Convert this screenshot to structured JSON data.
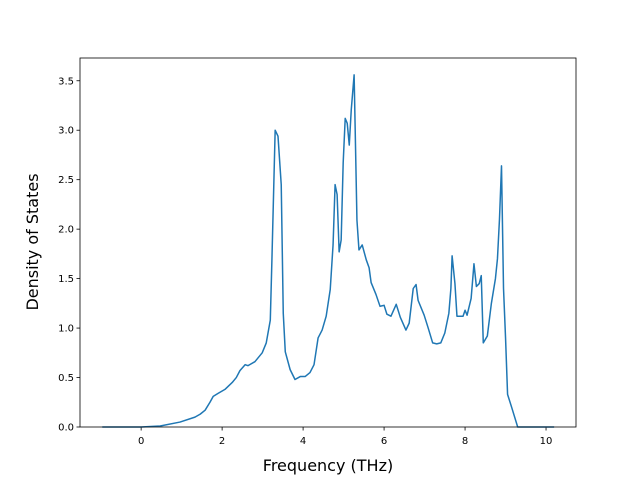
{
  "chart_data": {
    "type": "line",
    "x_label": "Frequency (THz)",
    "y_label": "Density of States",
    "xlim": [
      -1.51,
      10.74
    ],
    "ylim": [
      0,
      3.73
    ],
    "xticks": [
      0,
      2,
      4,
      6,
      8,
      10
    ],
    "yticks": [
      {
        "value": 0,
        "label": "0.0"
      },
      {
        "value": 0.5,
        "label": "0.5"
      },
      {
        "value": 1,
        "label": "1.0"
      },
      {
        "value": 1.5,
        "label": "1.5"
      },
      {
        "value": 2,
        "label": "2.0"
      },
      {
        "value": 2.5,
        "label": "2.5"
      },
      {
        "value": 3,
        "label": "3.0"
      },
      {
        "value": 3.5,
        "label": "3.5"
      }
    ],
    "grid": false,
    "series": [
      {
        "color": "#1f77b4",
        "x": [
          -0.96,
          0,
          0.47,
          0.96,
          1.33,
          1.46,
          1.58,
          1.7,
          1.78,
          1.9,
          2.07,
          2.25,
          2.35,
          2.44,
          2.57,
          2.64,
          2.81,
          2.99,
          3.09,
          3.19,
          3.23,
          3.31,
          3.38,
          3.46,
          3.51,
          3.56,
          3.68,
          3.8,
          3.93,
          4.05,
          4.17,
          4.27,
          4.37,
          4.47,
          4.57,
          4.67,
          4.74,
          4.79,
          4.84,
          4.89,
          4.94,
          4.99,
          5.04,
          5.09,
          5.14,
          5.19,
          5.26,
          5.33,
          5.38,
          5.46,
          5.56,
          5.63,
          5.68,
          5.8,
          5.9,
          6.0,
          6.07,
          6.17,
          6.3,
          6.4,
          6.54,
          6.62,
          6.72,
          6.79,
          6.84,
          6.99,
          7.09,
          7.2,
          7.3,
          7.4,
          7.5,
          7.6,
          7.65,
          7.68,
          7.75,
          7.8,
          7.95,
          8.0,
          8.05,
          8.15,
          8.22,
          8.28,
          8.35,
          8.4,
          8.45,
          8.55,
          8.65,
          8.75,
          8.8,
          8.85,
          8.9,
          8.95,
          9.0,
          9.05,
          9.15,
          9.3,
          10.2
        ],
        "values": [
          0,
          0,
          0.01,
          0.05,
          0.1,
          0.13,
          0.17,
          0.25,
          0.31,
          0.34,
          0.38,
          0.45,
          0.5,
          0.57,
          0.63,
          0.62,
          0.66,
          0.75,
          0.85,
          1.08,
          1.69,
          3.0,
          2.94,
          2.45,
          1.15,
          0.76,
          0.58,
          0.48,
          0.51,
          0.51,
          0.55,
          0.63,
          0.9,
          0.98,
          1.12,
          1.39,
          1.84,
          2.45,
          2.35,
          1.77,
          1.89,
          2.67,
          3.12,
          3.07,
          2.85,
          3.21,
          3.56,
          2.09,
          1.79,
          1.84,
          1.69,
          1.61,
          1.46,
          1.34,
          1.22,
          1.23,
          1.14,
          1.12,
          1.24,
          1.11,
          0.98,
          1.05,
          1.4,
          1.44,
          1.28,
          1.13,
          1.0,
          0.85,
          0.84,
          0.85,
          0.95,
          1.15,
          1.4,
          1.73,
          1.45,
          1.12,
          1.12,
          1.18,
          1.13,
          1.3,
          1.65,
          1.42,
          1.45,
          1.53,
          0.85,
          0.92,
          1.25,
          1.5,
          1.7,
          2.1,
          2.64,
          1.4,
          0.9,
          0.33,
          0.2,
          0,
          0
        ]
      }
    ]
  }
}
